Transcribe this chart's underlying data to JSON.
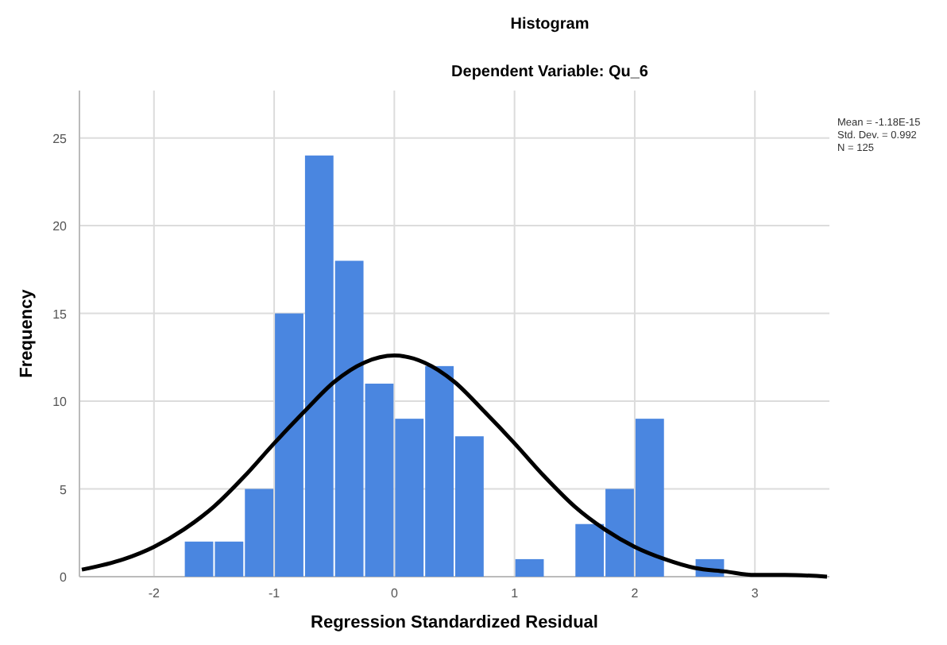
{
  "chart_data": {
    "type": "histogram",
    "title": "Histogram",
    "subtitle": "Dependent Variable: Qu_6",
    "xlabel": "Regression Standardized Residual",
    "ylabel": "Frequency",
    "xlim": [
      -2.62,
      3.62
    ],
    "xticks": [
      -2,
      -1,
      0,
      1,
      2,
      3
    ],
    "ylim": [
      0,
      27.7
    ],
    "yticks": [
      0,
      5,
      10,
      15,
      20,
      25
    ],
    "grid": true,
    "series": [
      {
        "color": "#4a86e0",
        "bins": [
          -1.75,
          -1.5,
          -1.25,
          -1,
          -0.75,
          -0.5,
          -0.25,
          0,
          0.25,
          0.5,
          0.75,
          1,
          1.25,
          1.5,
          1.75,
          2,
          2.25,
          2.5,
          2.75
        ],
        "values": [
          2,
          2,
          5,
          15,
          24,
          18,
          11,
          9,
          12,
          8,
          0,
          1,
          0,
          3,
          5,
          9,
          0,
          1
        ]
      },
      {
        "type": "line",
        "color": "#000000",
        "x": [
          -2.6,
          -2.25,
          -2,
          -1.75,
          -1.5,
          -1.25,
          -1,
          -0.75,
          -0.5,
          -0.25,
          0,
          0.25,
          0.5,
          0.75,
          1,
          1.25,
          1.5,
          1.75,
          2,
          2.25,
          2.5,
          2.75,
          3,
          3.25,
          3.6
        ],
        "values": [
          0.4,
          1.0,
          1.7,
          2.7,
          4.0,
          5.7,
          7.6,
          9.4,
          11.1,
          12.2,
          12.6,
          12.2,
          11.1,
          9.4,
          7.6,
          5.7,
          4.0,
          2.7,
          1.7,
          1.0,
          0.5,
          0.3,
          0.1,
          0.1,
          0.0
        ]
      }
    ],
    "annotations": [
      "Mean = -1.18E-15",
      "Std. Dev. = 0.992",
      "N = 125"
    ]
  }
}
